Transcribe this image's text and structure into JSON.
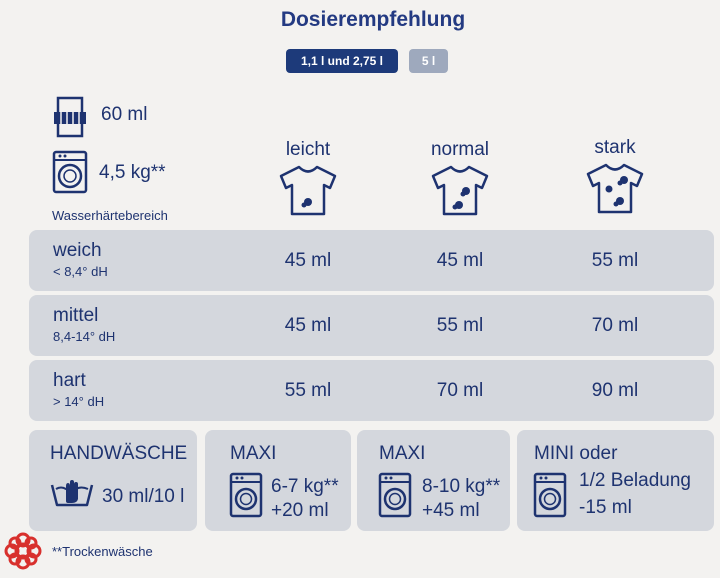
{
  "title": "Dosierempfehlung",
  "pills": [
    "1,1 l und 2,75 l",
    "5 l"
  ],
  "header": {
    "dose": "60 ml",
    "load": "4,5 kg**",
    "water_hardness_label": "Wasserhärtebereich",
    "columns": [
      "leicht",
      "normal",
      "stark"
    ]
  },
  "rows": [
    {
      "name": "weich",
      "sub": "< 8,4° dH",
      "values": [
        "45 ml",
        "45 ml",
        "55 ml"
      ]
    },
    {
      "name": "mittel",
      "sub": "8,4-14° dH",
      "values": [
        "45 ml",
        "55 ml",
        "70 ml"
      ]
    },
    {
      "name": "hart",
      "sub": "> 14° dH",
      "values": [
        "55 ml",
        "70 ml",
        "90 ml"
      ]
    }
  ],
  "boxes": [
    {
      "title": "HANDWÄSCHE",
      "line1": "30 ml/10 l"
    },
    {
      "title": "MAXI",
      "line1": "6-7 kg**",
      "line2": "+20 ml"
    },
    {
      "title": "MAXI",
      "line1": "8-10 kg**",
      "line2": "+45 ml"
    },
    {
      "title": "MINI oder",
      "line1": "1/2 Beladung",
      "line2": "-15 ml"
    }
  ],
  "footnote": "**Trockenwäsche",
  "colors": {
    "accent": "#1d3a7a",
    "inactive_pill": "#9ea9bd",
    "panel": "#d4d7dd",
    "logo": "#d8302d"
  },
  "icons": [
    "detergent-bottle-icon",
    "washing-machine-icon",
    "tshirt-icon",
    "tshirt-stain-icon",
    "hand-wash-icon",
    "logo-icon"
  ]
}
